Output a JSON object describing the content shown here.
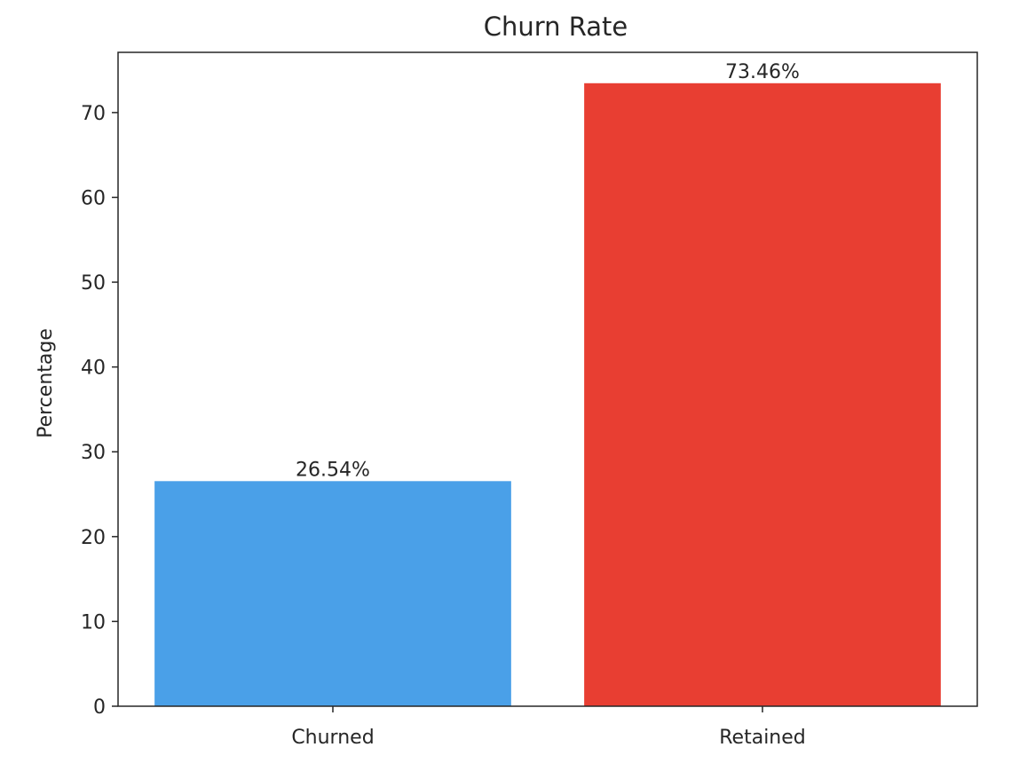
{
  "chart_data": {
    "type": "bar",
    "title": "Churn Rate",
    "xlabel": "",
    "ylabel": "Percentage",
    "categories": [
      "Churned",
      "Retained"
    ],
    "values": [
      26.54,
      73.46
    ],
    "data_labels": [
      "26.54%",
      "73.46%"
    ],
    "colors": [
      "#4aa0e8",
      "#e83e32"
    ],
    "ylim": [
      0,
      77.1
    ],
    "yticks": [
      0,
      10,
      20,
      30,
      40,
      50,
      60,
      70
    ],
    "grid": false,
    "legend": "none"
  }
}
